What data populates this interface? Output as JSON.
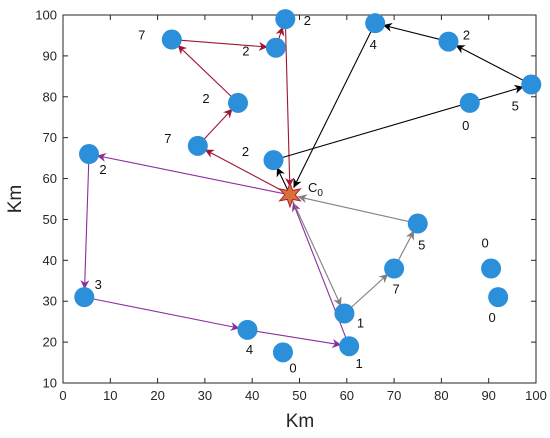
{
  "chart_data": {
    "type": "scatter",
    "xlabel": "Km",
    "ylabel": "Km",
    "xlim": [
      0,
      100
    ],
    "ylim": [
      10,
      100
    ],
    "xticks": [
      0,
      10,
      20,
      30,
      40,
      50,
      60,
      70,
      80,
      90,
      100
    ],
    "yticks": [
      10,
      20,
      30,
      40,
      50,
      60,
      70,
      80,
      90,
      100
    ],
    "grid": false,
    "center": {
      "name": "C",
      "subscript": "0",
      "x": 48,
      "y": 56
    },
    "points": [
      {
        "x": 47,
        "y": 99,
        "label": "2"
      },
      {
        "x": 45,
        "y": 92,
        "label": "2"
      },
      {
        "x": 23,
        "y": 94,
        "label": "7"
      },
      {
        "x": 37,
        "y": 78.5,
        "label": "2"
      },
      {
        "x": 28.5,
        "y": 68,
        "label": "7"
      },
      {
        "x": 44.5,
        "y": 64.5,
        "label": "2"
      },
      {
        "x": 5.5,
        "y": 66,
        "label": "2"
      },
      {
        "x": 4.5,
        "y": 31,
        "label": "3"
      },
      {
        "x": 39,
        "y": 23,
        "label": "4"
      },
      {
        "x": 46.5,
        "y": 17.5,
        "label": "0"
      },
      {
        "x": 60.5,
        "y": 19,
        "label": "1"
      },
      {
        "x": 59.5,
        "y": 27,
        "label": "1"
      },
      {
        "x": 70,
        "y": 38,
        "label": "7"
      },
      {
        "x": 75,
        "y": 49,
        "label": "5"
      },
      {
        "x": 66,
        "y": 98,
        "label": "4"
      },
      {
        "x": 81.5,
        "y": 93.5,
        "label": "2"
      },
      {
        "x": 99,
        "y": 83,
        "label": "5"
      },
      {
        "x": 86,
        "y": 78.5,
        "label": "0"
      },
      {
        "x": 90.5,
        "y": 38,
        "label": "0"
      },
      {
        "x": 92,
        "y": 31,
        "label": "0"
      }
    ],
    "routes": [
      {
        "color": "#a01530",
        "path": [
          [
            48,
            56
          ],
          [
            28.5,
            68
          ],
          [
            37,
            78.5
          ],
          [
            23,
            94
          ],
          [
            45,
            92
          ],
          [
            47,
            99
          ],
          [
            48,
            56
          ]
        ]
      },
      {
        "color": "#8b2fa0",
        "path": [
          [
            48,
            56
          ],
          [
            5.5,
            66
          ],
          [
            4.5,
            31
          ],
          [
            39,
            23
          ],
          [
            60.5,
            19
          ],
          [
            48,
            56
          ]
        ]
      },
      {
        "color": "#808080",
        "path": [
          [
            48,
            56
          ],
          [
            59.5,
            27
          ],
          [
            70,
            38
          ],
          [
            75,
            49
          ],
          [
            48,
            56
          ]
        ]
      },
      {
        "color": "#000000",
        "path": [
          [
            48,
            56
          ],
          [
            44.5,
            64.5
          ],
          [
            99,
            83
          ],
          [
            81.5,
            93.5
          ],
          [
            66,
            98
          ],
          [
            48,
            56
          ]
        ]
      }
    ],
    "colors": {
      "point": "#2b8fd9",
      "star_fill": "#d7703a",
      "star_stroke": "#b01e2e"
    }
  }
}
